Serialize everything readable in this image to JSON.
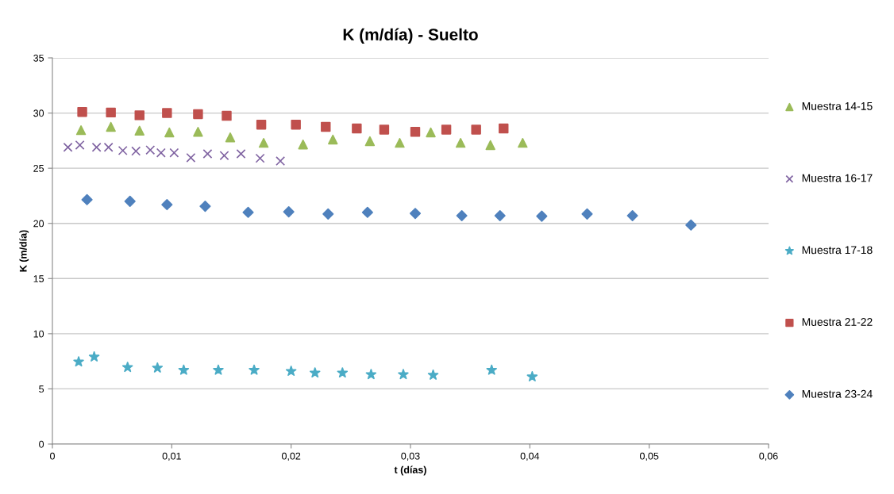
{
  "chart_data": {
    "type": "scatter",
    "title": "K (m/día) - Suelto",
    "xlabel": "t (días)",
    "ylabel": "K (m/día)",
    "xlim": [
      0,
      0.06
    ],
    "ylim": [
      0,
      35
    ],
    "xticks": [
      0,
      {
        "value": 0.01,
        "label": "0,01"
      },
      {
        "value": 0.02,
        "label": "0,02"
      },
      {
        "value": 0.03,
        "label": "0,03"
      },
      {
        "value": 0.04,
        "label": "0,04"
      },
      {
        "value": 0.05,
        "label": "0,05"
      },
      {
        "value": 0.06,
        "label": "0,06"
      }
    ],
    "yticks": [
      0,
      5,
      10,
      15,
      20,
      25,
      30,
      35
    ],
    "grid": "y",
    "legend": "right",
    "series": [
      {
        "name": "Muestra 14-15",
        "color": "#9bbb59",
        "marker": "triangle",
        "x": [
          0.0024,
          0.0049,
          0.0073,
          0.0098,
          0.0122,
          0.0149,
          0.0177,
          0.021,
          0.0235,
          0.0266,
          0.0291,
          0.0317,
          0.0342,
          0.0367,
          0.0394
        ],
        "values": [
          28.45,
          28.75,
          28.4,
          28.25,
          28.3,
          27.8,
          27.3,
          27.15,
          27.6,
          27.45,
          27.3,
          28.25,
          27.3,
          27.1,
          27.3
        ]
      },
      {
        "name": "Muestra 16-17",
        "color": "#8064a2",
        "marker": "cross",
        "x": [
          0.0013,
          0.0023,
          0.0037,
          0.0047,
          0.0059,
          0.007,
          0.0082,
          0.0091,
          0.0102,
          0.0116,
          0.013,
          0.0144,
          0.0158,
          0.0174,
          0.0191
        ],
        "values": [
          26.9,
          27.1,
          26.9,
          26.9,
          26.6,
          26.55,
          26.65,
          26.4,
          26.4,
          25.95,
          26.3,
          26.15,
          26.3,
          25.9,
          25.65
        ]
      },
      {
        "name": "Muestra 17-18",
        "color": "#4bacc6",
        "marker": "star",
        "x": [
          0.0022,
          0.0035,
          0.0063,
          0.0088,
          0.011,
          0.0139,
          0.0169,
          0.02,
          0.022,
          0.0243,
          0.0267,
          0.0294,
          0.0319,
          0.0368,
          0.0402
        ],
        "values": [
          7.45,
          7.9,
          6.95,
          6.9,
          6.7,
          6.7,
          6.7,
          6.6,
          6.45,
          6.45,
          6.3,
          6.3,
          6.25,
          6.7,
          6.1
        ]
      },
      {
        "name": "Muestra 21-22",
        "color": "#c0504d",
        "marker": "square",
        "x": [
          0.0025,
          0.0049,
          0.0073,
          0.0096,
          0.0122,
          0.0146,
          0.0175,
          0.0204,
          0.0229,
          0.0255,
          0.0278,
          0.0304,
          0.033,
          0.0355,
          0.0378
        ],
        "values": [
          30.1,
          30.05,
          29.8,
          30.0,
          29.9,
          29.75,
          28.95,
          28.95,
          28.75,
          28.6,
          28.5,
          28.3,
          28.5,
          28.5,
          28.6
        ]
      },
      {
        "name": "Muestra 23-24",
        "color": "#4f81bd",
        "marker": "diamond",
        "x": [
          0.0029,
          0.0065,
          0.0096,
          0.0128,
          0.0164,
          0.0198,
          0.0231,
          0.0264,
          0.0304,
          0.0343,
          0.0375,
          0.041,
          0.0448,
          0.0486,
          0.0535
        ],
        "values": [
          22.15,
          22.0,
          21.7,
          21.55,
          21.0,
          21.05,
          20.85,
          21.0,
          20.9,
          20.7,
          20.7,
          20.65,
          20.85,
          20.7,
          19.85
        ]
      }
    ]
  }
}
